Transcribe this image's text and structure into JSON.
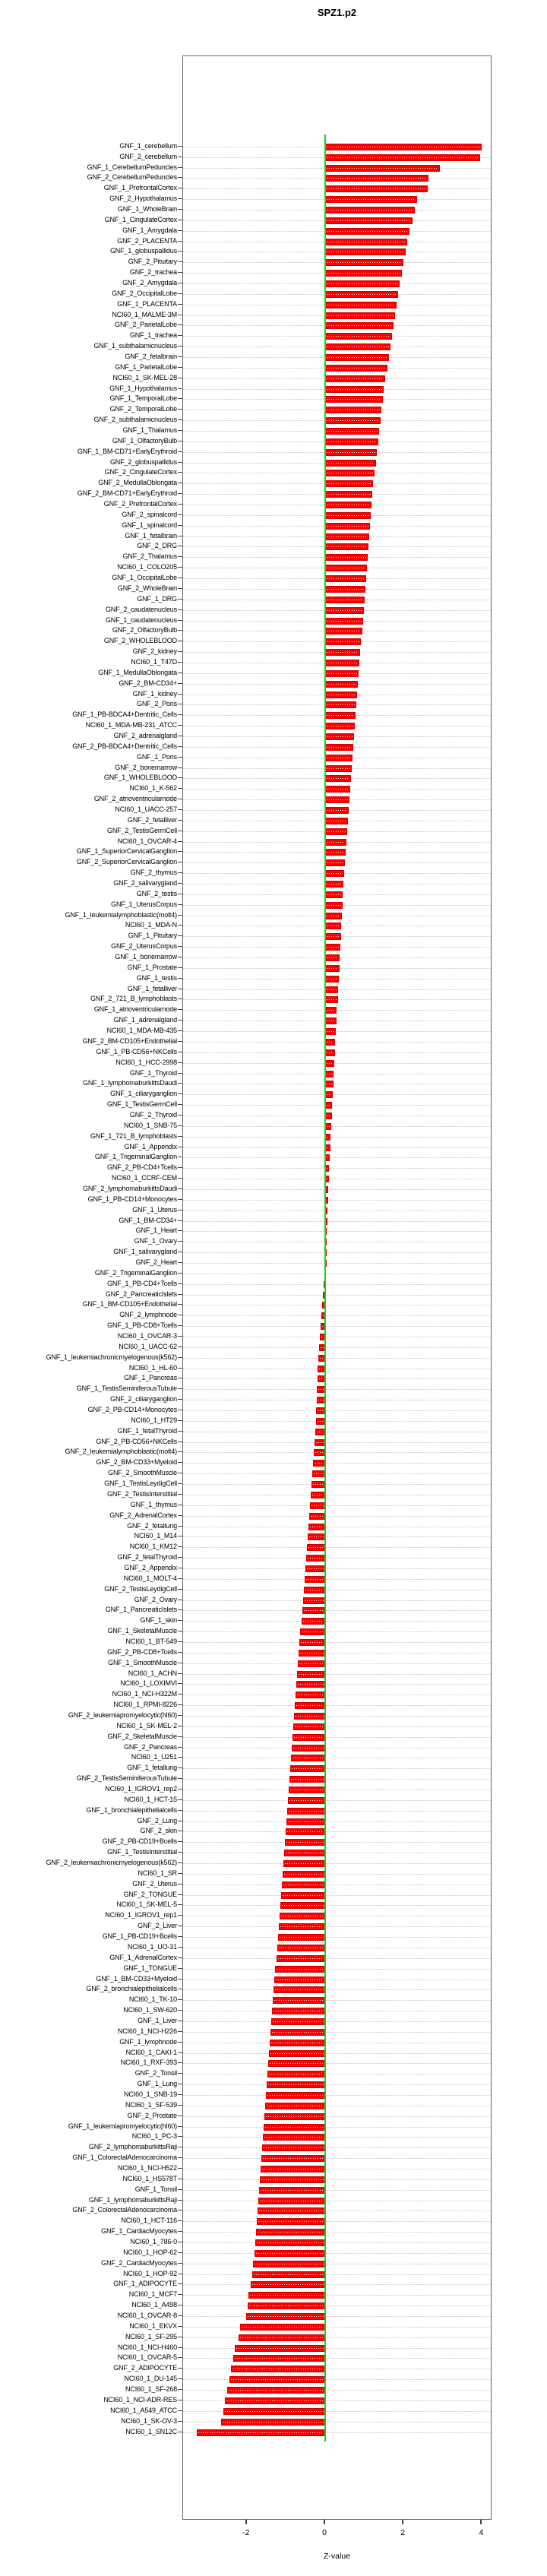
{
  "title": "SPZ1.p2",
  "chart_data": {
    "type": "bar",
    "orientation": "horizontal",
    "title": "SPZ1.p2",
    "xlabel": "Z-value",
    "x_ticks": [
      "-2",
      "0",
      "2",
      "4"
    ],
    "x_tick_values": [
      -2,
      0,
      2,
      4
    ],
    "xlim": [
      -3.62,
      4.26
    ],
    "grid": "dotted",
    "legend": "none",
    "bar_color": "#ff0000",
    "zero_line_color": "#00dd22",
    "categories": [
      "GNF_1_cerebellum",
      "GNF_2_cerebellum",
      "GNF_1_CerebellumPeduncles",
      "GNF_2_CerebellumPeduncles",
      "GNF_1_PrefrontalCortex",
      "GNF_2_Hypothalamus",
      "GNF_1_WholeBrain",
      "GNF_1_CingulateCortex",
      "GNF_1_Amygdala",
      "GNF_2_PLACENTA",
      "GNF_1_globuspallidus",
      "GNF_2_Pituitary",
      "GNF_2_trachea",
      "GNF_2_Amygdala",
      "GNF_2_OccipitalLobe",
      "GNF_1_PLACENTA",
      "NCI60_1_MALME-3M",
      "GNF_2_ParietalLobe",
      "GNF_1_trachea",
      "GNF_1_subthalamicnucleus",
      "GNF_2_fetalbrain",
      "GNF_1_ParietalLobe",
      "NCI60_1_SK-MEL-28",
      "GNF_1_Hypothalamus",
      "GNF_1_TemporalLobe",
      "GNF_2_TemporalLobe",
      "GNF_2_subthalamicnucleus",
      "GNF_1_Thalamus",
      "GNF_1_OlfactoryBulb",
      "GNF_1_BM-CD71+EarlyErythroid",
      "GNF_2_globuspallidus",
      "GNF_2_CingulateCortex",
      "GNF_2_MedullaOblongata",
      "GNF_2_BM-CD71+EarlyErythroid",
      "GNF_2_PrefrontalCortex",
      "GNF_2_spinalcord",
      "GNF_1_spinalcord",
      "GNF_1_fetalbrain",
      "GNF_2_DRG",
      "GNF_2_Thalamus",
      "NCI60_1_COLO205",
      "GNF_1_OccipitalLobe",
      "GNF_2_WholeBrain",
      "GNF_1_DRG",
      "GNF_2_caudatenucleus",
      "GNF_1_caudatenucleus",
      "GNF_2_OlfactoryBulb",
      "GNF_2_WHOLEBLOOD",
      "GNF_2_kidney",
      "NCI60_1_T47D",
      "GNF_1_MedullaOblongata",
      "GNF_2_BM-CD34+",
      "GNF_1_kidney",
      "GNF_2_Pons",
      "GNF_1_PB-BDCA4+Dentritic_Cells",
      "NCI60_1_MDA-MB-231_ATCC",
      "GNF_2_adrenalgland",
      "GNF_2_PB-BDCA4+Dentritic_Cells",
      "GNF_1_Pons",
      "GNF_2_bonemarrow",
      "GNF_1_WHOLEBLOOD",
      "NCI60_1_K-562",
      "GNF_2_atrioventricularnode",
      "NCI60_1_UACC-257",
      "GNF_2_fetalliver",
      "GNF_2_TestisGermCell",
      "NCI60_1_OVCAR-4",
      "GNF_1_SuperiorCervicalGanglion",
      "GNF_2_SuperiorCervicalGanglion",
      "GNF_2_thymus",
      "GNF_2_salivarygland",
      "GNF_2_testis",
      "GNF_1_UterusCorpus",
      "GNF_1_leukemialymphoblastic(molt4)",
      "NCI60_1_MDA-N",
      "GNF_1_Pituitary",
      "GNF_2_UterusCorpus",
      "GNF_1_bonemarrow",
      "GNF_1_Prostate",
      "GNF_1_testis",
      "GNF_1_fetalliver",
      "GNF_2_721_B_lymphoblasts",
      "GNF_1_atrioventricularnode",
      "GNF_1_adrenalgland",
      "NCI60_1_MDA-MB-435",
      "GNF_2_BM-CD105+Endothelial",
      "GNF_1_PB-CD56+NKCells",
      "NCI60_1_HCC-2998",
      "GNF_1_Thyroid",
      "GNF_1_lymphomaburkittsDaudi",
      "GNF_1_ciliaryganglion",
      "GNF_1_TestisGermCell",
      "GNF_2_Thyroid",
      "NCI60_1_SNB-75",
      "GNF_1_721_B_lymphoblasts",
      "GNF_1_Appendix",
      "GNF_1_TrigeminalGanglion",
      "GNF_2_PB-CD4+Tcells",
      "NCI60_1_CCRF-CEM",
      "GNF_2_lymphomaburkittsDaudi",
      "GNF_1_PB-CD14+Monocytes",
      "GNF_1_Uterus",
      "GNF_1_BM-CD34+",
      "GNF_1_Heart",
      "GNF_1_Ovary",
      "GNF_1_salivarygland",
      "GNF_2_Heart",
      "GNF_2_TrigeminalGanglion",
      "GNF_1_PB-CD4+Tcells",
      "GNF_2_PancreaticIslets",
      "GNF_1_BM-CD105+Endothelial",
      "GNF_2_lymphnode",
      "GNF_1_PB-CD8+Tcells",
      "NCI60_1_OVCAR-3",
      "NCI60_1_UACC-62",
      "GNF_1_leukemiachronicmyelogenous(k562)",
      "NCI60_1_HL-60",
      "GNF_1_Pancreas",
      "GNF_1_TestisSeminiferousTubule",
      "GNF_2_ciliaryganglion",
      "GNF_2_PB-CD14+Monocytes",
      "NCI60_1_HT29",
      "GNF_1_fetalThyroid",
      "GNF_2_PB-CD56+NKCells",
      "GNF_2_leukemialymphoblastic(molt4)",
      "GNF_2_BM-CD33+Myeloid",
      "GNF_2_SmoothMuscle",
      "GNF_1_TestisLeydigCell",
      "GNF_2_TestisInterstitial",
      "GNF_1_thymus",
      "GNF_2_AdrenalCortex",
      "GNF_2_fetallung",
      "NCI60_1_M14",
      "NCI60_1_KM12",
      "GNF_2_fetalThyroid",
      "GNF_2_Appendix",
      "NCI60_1_MOLT-4",
      "GNF_2_TestisLeydigCell",
      "GNF_2_Ovary",
      "GNF_1_PancreaticIslets",
      "GNF_1_skin",
      "GNF_1_SkeletalMuscle",
      "NCI60_1_BT-549",
      "GNF_2_PB-CD8+Tcells",
      "GNF_1_SmoothMuscle",
      "NCI60_1_ACHN",
      "NCI60_1_LOXIMVI",
      "NCI60_1_NCI-H322M",
      "NCI60_1_RPMI-8226",
      "GNF_2_leukemiapromyelocytic(hl60)",
      "NCI60_1_SK-MEL-2",
      "GNF_2_SkeletalMuscle",
      "GNF_2_Pancreas",
      "NCI60_1_U251",
      "GNF_1_fetallung",
      "GNF_2_TestisSeminiferousTubule",
      "NCI60_1_IGROV1_rep2",
      "NCI60_1_HCT-15",
      "GNF_1_bronchialepithelialcells",
      "GNF_2_Lung",
      "GNF_2_skin",
      "GNF_2_PB-CD19+Bcells",
      "GNF_1_TestisInterstitial",
      "GNF_2_leukemiachronicmyelogenous(k562)",
      "NCI60_1_SR",
      "GNF_2_Uterus",
      "GNF_2_TONGUE",
      "NCI60_1_SK-MEL-5",
      "NCI60_1_IGROV1_rep1",
      "GNF_2_Liver",
      "GNF_1_PB-CD19+Bcells",
      "NCI60_1_UO-31",
      "GNF_1_AdrenalCortex",
      "GNF_1_TONGUE",
      "GNF_1_BM-CD33+Myeloid",
      "GNF_2_bronchialepithelialcells",
      "NCI60_1_TK-10",
      "NCI60_1_SW-620",
      "GNF_1_Liver",
      "NCI60_1_NCI-H226",
      "GNF_1_lymphnode",
      "NCI60_1_CAKI-1",
      "NCI60_1_RXF-393",
      "GNF_2_Tonsil",
      "GNF_1_Lung",
      "NCI60_1_SNB-19",
      "NCI60_1_SF-539",
      "GNF_2_Prostate",
      "GNF_1_leukemiapromyelocytic(hl60)",
      "NCI60_1_PC-3",
      "GNF_2_lymphomaburkittsRaji",
      "GNF_1_ColorectalAdenocarcinoma",
      "NCI60_1_NCI-H522",
      "NCI60_1_HS578T",
      "GNF_1_Tonsil",
      "GNF_1_lymphomaburkittsRaji",
      "GNF_2_ColorectalAdenocarcinoma",
      "NCI60_1_HCT-116",
      "GNF_1_CardiacMyocytes",
      "NCI60_1_786-0",
      "NCI60_1_HOP-62",
      "GNF_2_CardiacMyocytes",
      "NCI60_1_HOP-92",
      "GNF_1_ADIPOCYTE",
      "NCI60_1_MCF7",
      "NCI60_1_A498",
      "NCI60_1_OVCAR-8",
      "NCI60_1_EKVX",
      "NCI60_1_SF-295",
      "NCI60_1_NCI-H460",
      "NCI60_1_OVCAR-5",
      "GNF_2_ADIPOCYTE",
      "NCI60_1_DU-145",
      "NCI60_1_SF-268",
      "NCI60_1_NCI-ADR-RES",
      "NCI60_1_A549_ATCC",
      "NCI60_1_SK-OV-3",
      "NCI60_1_SN12C"
    ],
    "values": [
      4.0,
      3.95,
      2.93,
      2.64,
      2.62,
      2.35,
      2.28,
      2.22,
      2.16,
      2.1,
      2.05,
      2.0,
      1.95,
      1.9,
      1.86,
      1.82,
      1.78,
      1.74,
      1.7,
      1.66,
      1.62,
      1.58,
      1.54,
      1.5,
      1.47,
      1.44,
      1.41,
      1.38,
      1.35,
      1.32,
      1.29,
      1.26,
      1.23,
      1.2,
      1.18,
      1.16,
      1.14,
      1.12,
      1.1,
      1.08,
      1.06,
      1.04,
      1.02,
      1.0,
      0.98,
      0.96,
      0.94,
      0.92,
      0.9,
      0.88,
      0.86,
      0.84,
      0.82,
      0.8,
      0.78,
      0.76,
      0.74,
      0.72,
      0.7,
      0.68,
      0.66,
      0.64,
      0.62,
      0.6,
      0.58,
      0.56,
      0.54,
      0.52,
      0.5,
      0.48,
      0.46,
      0.45,
      0.44,
      0.42,
      0.41,
      0.4,
      0.38,
      0.37,
      0.36,
      0.34,
      0.33,
      0.32,
      0.3,
      0.29,
      0.28,
      0.26,
      0.25,
      0.24,
      0.22,
      0.21,
      0.2,
      0.18,
      0.17,
      0.16,
      0.14,
      0.13,
      0.12,
      0.1,
      0.09,
      0.08,
      0.07,
      0.06,
      0.05,
      0.04,
      0.03,
      0.02,
      0.01,
      -0.01,
      -0.03,
      -0.05,
      -0.07,
      -0.09,
      -0.11,
      -0.13,
      -0.15,
      -0.17,
      -0.19,
      -0.2,
      -0.21,
      -0.22,
      -0.23,
      -0.24,
      -0.25,
      -0.27,
      -0.29,
      -0.31,
      -0.33,
      -0.35,
      -0.37,
      -0.39,
      -0.41,
      -0.43,
      -0.45,
      -0.47,
      -0.49,
      -0.51,
      -0.53,
      -0.55,
      -0.57,
      -0.59,
      -0.61,
      -0.63,
      -0.65,
      -0.67,
      -0.69,
      -0.71,
      -0.73,
      -0.75,
      -0.77,
      -0.79,
      -0.81,
      -0.83,
      -0.85,
      -0.87,
      -0.89,
      -0.91,
      -0.93,
      -0.95,
      -0.97,
      -0.99,
      -1.01,
      -1.03,
      -1.05,
      -1.07,
      -1.09,
      -1.11,
      -1.13,
      -1.15,
      -1.17,
      -1.19,
      -1.21,
      -1.23,
      -1.25,
      -1.27,
      -1.29,
      -1.31,
      -1.33,
      -1.35,
      -1.37,
      -1.39,
      -1.41,
      -1.43,
      -1.45,
      -1.47,
      -1.49,
      -1.51,
      -1.53,
      -1.55,
      -1.57,
      -1.59,
      -1.61,
      -1.63,
      -1.65,
      -1.67,
      -1.69,
      -1.71,
      -1.73,
      -1.75,
      -1.77,
      -1.79,
      -1.81,
      -1.84,
      -1.87,
      -1.9,
      -1.95,
      -1.98,
      -2.02,
      -2.17,
      -2.2,
      -2.3,
      -2.35,
      -2.4,
      -2.45,
      -2.5,
      -2.55,
      -2.6,
      -2.65,
      -3.27
    ]
  }
}
